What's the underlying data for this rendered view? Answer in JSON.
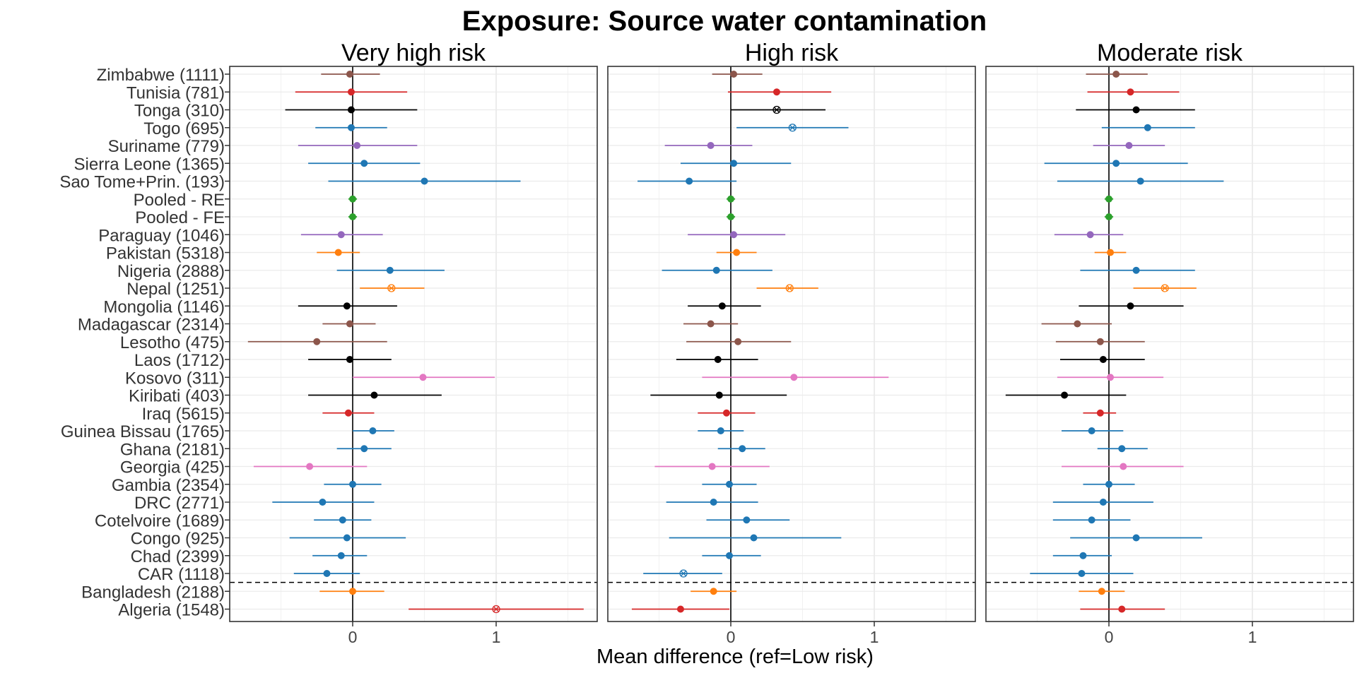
{
  "chart_data": {
    "type": "forest",
    "title": "Exposure: Source water contamination",
    "xlabel": "Mean difference (ref=Low risk)",
    "xlim": [
      -0.9,
      1.7
    ],
    "x_ticks": [
      "0",
      "1"
    ],
    "x_tick_values": [
      0,
      1
    ],
    "reference_line_x": 0,
    "panels": [
      "Very high risk",
      "High risk",
      "Moderate risk"
    ],
    "categories": [
      "Zimbabwe (1111)",
      "Tunisia (781)",
      "Tonga (310)",
      "Togo (695)",
      "Suriname (779)",
      "Sierra Leone (1365)",
      "Sao Tome+Prin. (193)",
      "Pooled - RE",
      "Pooled - FE",
      "Paraguay (1046)",
      "Pakistan (5318)",
      "Nigeria (2888)",
      "Nepal (1251)",
      "Mongolia (1146)",
      "Madagascar (2314)",
      "Lesotho (475)",
      "Laos (1712)",
      "Kosovo (311)",
      "Kiribati (403)",
      "Iraq (5615)",
      "Guinea Bissau (1765)",
      "Ghana (2181)",
      "Georgia (425)",
      "Gambia (2354)",
      "DRC (2771)",
      "Cotelvoire (1689)",
      "Congo (925)",
      "Chad (2399)",
      "CAR (1118)",
      "Bangladesh (2188)",
      "Algeria (1548)"
    ],
    "category_colors": [
      "#8c564b",
      "#d62728",
      "#000000",
      "#1f77b4",
      "#9467bd",
      "#1f77b4",
      "#1f77b4",
      "#2ca02c",
      "#2ca02c",
      "#9467bd",
      "#ff7f0e",
      "#1f77b4",
      "#ff7f0e",
      "#000000",
      "#8c564b",
      "#8c564b",
      "#000000",
      "#e377c2",
      "#000000",
      "#d62728",
      "#1f77b4",
      "#1f77b4",
      "#e377c2",
      "#1f77b4",
      "#1f77b4",
      "#1f77b4",
      "#1f77b4",
      "#1f77b4",
      "#1f77b4",
      "#ff7f0e",
      "#d62728"
    ],
    "separator_after_category": "CAR (1118)",
    "series": [
      {
        "panel": "Very high risk",
        "points": [
          {
            "est": -0.02,
            "lo": -0.22,
            "hi": 0.19,
            "marker": "dot"
          },
          {
            "est": -0.01,
            "lo": -0.4,
            "hi": 0.38,
            "marker": "dot"
          },
          {
            "est": -0.01,
            "lo": -0.47,
            "hi": 0.45,
            "marker": "dot"
          },
          {
            "est": -0.01,
            "lo": -0.26,
            "hi": 0.24,
            "marker": "dot"
          },
          {
            "est": 0.03,
            "lo": -0.38,
            "hi": 0.45,
            "marker": "dot"
          },
          {
            "est": 0.08,
            "lo": -0.31,
            "hi": 0.47,
            "marker": "dot"
          },
          {
            "est": 0.5,
            "lo": -0.17,
            "hi": 1.17,
            "marker": "dot"
          },
          {
            "est": 0.0,
            "lo": -0.03,
            "hi": 0.03,
            "marker": "dot"
          },
          {
            "est": 0.0,
            "lo": -0.03,
            "hi": 0.03,
            "marker": "dot"
          },
          {
            "est": -0.08,
            "lo": -0.36,
            "hi": 0.21,
            "marker": "dot"
          },
          {
            "est": -0.1,
            "lo": -0.25,
            "hi": 0.05,
            "marker": "dot"
          },
          {
            "est": 0.26,
            "lo": -0.11,
            "hi": 0.64,
            "marker": "dot"
          },
          {
            "est": 0.27,
            "lo": 0.05,
            "hi": 0.5,
            "marker": "cross"
          },
          {
            "est": -0.04,
            "lo": -0.38,
            "hi": 0.31,
            "marker": "dot"
          },
          {
            "est": -0.02,
            "lo": -0.21,
            "hi": 0.16,
            "marker": "dot"
          },
          {
            "est": -0.25,
            "lo": -0.73,
            "hi": 0.24,
            "marker": "dot"
          },
          {
            "est": -0.02,
            "lo": -0.31,
            "hi": 0.27,
            "marker": "dot"
          },
          {
            "est": 0.49,
            "lo": 0.0,
            "hi": 0.99,
            "marker": "dot"
          },
          {
            "est": 0.15,
            "lo": -0.31,
            "hi": 0.62,
            "marker": "dot"
          },
          {
            "est": -0.03,
            "lo": -0.21,
            "hi": 0.15,
            "marker": "dot"
          },
          {
            "est": 0.14,
            "lo": 0.0,
            "hi": 0.29,
            "marker": "dot"
          },
          {
            "est": 0.08,
            "lo": -0.11,
            "hi": 0.27,
            "marker": "dot"
          },
          {
            "est": -0.3,
            "lo": -0.69,
            "hi": 0.1,
            "marker": "dot"
          },
          {
            "est": 0.0,
            "lo": -0.2,
            "hi": 0.2,
            "marker": "dot"
          },
          {
            "est": -0.21,
            "lo": -0.56,
            "hi": 0.15,
            "marker": "dot"
          },
          {
            "est": -0.07,
            "lo": -0.27,
            "hi": 0.13,
            "marker": "dot"
          },
          {
            "est": -0.04,
            "lo": -0.44,
            "hi": 0.37,
            "marker": "dot"
          },
          {
            "est": -0.08,
            "lo": -0.28,
            "hi": 0.1,
            "marker": "dot"
          },
          {
            "est": -0.18,
            "lo": -0.41,
            "hi": 0.05,
            "marker": "dot"
          },
          {
            "est": 0.0,
            "lo": -0.23,
            "hi": 0.22,
            "marker": "dot"
          },
          {
            "est": 1.0,
            "lo": 0.39,
            "hi": 1.61,
            "marker": "cross"
          }
        ]
      },
      {
        "panel": "High risk",
        "points": [
          {
            "est": 0.02,
            "lo": -0.13,
            "hi": 0.22,
            "marker": "dot"
          },
          {
            "est": 0.32,
            "lo": -0.02,
            "hi": 0.7,
            "marker": "dot"
          },
          {
            "est": 0.32,
            "lo": 0.0,
            "hi": 0.66,
            "marker": "cross"
          },
          {
            "est": 0.43,
            "lo": 0.04,
            "hi": 0.82,
            "marker": "cross"
          },
          {
            "est": -0.14,
            "lo": -0.46,
            "hi": 0.15,
            "marker": "dot"
          },
          {
            "est": 0.02,
            "lo": -0.35,
            "hi": 0.42,
            "marker": "dot"
          },
          {
            "est": -0.29,
            "lo": -0.65,
            "hi": 0.04,
            "marker": "dot"
          },
          {
            "est": 0.0,
            "lo": -0.03,
            "hi": 0.03,
            "marker": "dot"
          },
          {
            "est": 0.0,
            "lo": -0.03,
            "hi": 0.03,
            "marker": "dot"
          },
          {
            "est": 0.02,
            "lo": -0.3,
            "hi": 0.38,
            "marker": "dot"
          },
          {
            "est": 0.04,
            "lo": -0.1,
            "hi": 0.18,
            "marker": "dot"
          },
          {
            "est": -0.1,
            "lo": -0.48,
            "hi": 0.29,
            "marker": "dot"
          },
          {
            "est": 0.41,
            "lo": 0.18,
            "hi": 0.61,
            "marker": "cross"
          },
          {
            "est": -0.06,
            "lo": -0.3,
            "hi": 0.21,
            "marker": "dot"
          },
          {
            "est": -0.14,
            "lo": -0.33,
            "hi": 0.05,
            "marker": "dot"
          },
          {
            "est": 0.05,
            "lo": -0.31,
            "hi": 0.42,
            "marker": "dot"
          },
          {
            "est": -0.09,
            "lo": -0.38,
            "hi": 0.19,
            "marker": "dot"
          },
          {
            "est": 0.44,
            "lo": -0.2,
            "hi": 1.1,
            "marker": "dot"
          },
          {
            "est": -0.08,
            "lo": -0.56,
            "hi": 0.39,
            "marker": "dot"
          },
          {
            "est": -0.03,
            "lo": -0.23,
            "hi": 0.17,
            "marker": "dot"
          },
          {
            "est": -0.07,
            "lo": -0.23,
            "hi": 0.09,
            "marker": "dot"
          },
          {
            "est": 0.08,
            "lo": -0.09,
            "hi": 0.24,
            "marker": "dot"
          },
          {
            "est": -0.13,
            "lo": -0.53,
            "hi": 0.27,
            "marker": "dot"
          },
          {
            "est": -0.01,
            "lo": -0.2,
            "hi": 0.18,
            "marker": "dot"
          },
          {
            "est": -0.12,
            "lo": -0.45,
            "hi": 0.19,
            "marker": "dot"
          },
          {
            "est": 0.11,
            "lo": -0.17,
            "hi": 0.41,
            "marker": "dot"
          },
          {
            "est": 0.16,
            "lo": -0.43,
            "hi": 0.77,
            "marker": "dot"
          },
          {
            "est": -0.01,
            "lo": -0.2,
            "hi": 0.21,
            "marker": "dot"
          },
          {
            "est": -0.33,
            "lo": -0.61,
            "hi": -0.06,
            "marker": "cross"
          },
          {
            "est": -0.12,
            "lo": -0.28,
            "hi": 0.04,
            "marker": "dot"
          },
          {
            "est": -0.35,
            "lo": -0.69,
            "hi": -0.01,
            "marker": "dot"
          }
        ]
      },
      {
        "panel": "Moderate risk",
        "points": [
          {
            "est": 0.05,
            "lo": -0.16,
            "hi": 0.27,
            "marker": "dot"
          },
          {
            "est": 0.15,
            "lo": -0.15,
            "hi": 0.49,
            "marker": "dot"
          },
          {
            "est": 0.19,
            "lo": -0.23,
            "hi": 0.6,
            "marker": "dot"
          },
          {
            "est": 0.27,
            "lo": -0.05,
            "hi": 0.6,
            "marker": "dot"
          },
          {
            "est": 0.14,
            "lo": -0.11,
            "hi": 0.39,
            "marker": "dot"
          },
          {
            "est": 0.05,
            "lo": -0.45,
            "hi": 0.55,
            "marker": "dot"
          },
          {
            "est": 0.22,
            "lo": -0.36,
            "hi": 0.8,
            "marker": "dot"
          },
          {
            "est": 0.0,
            "lo": -0.03,
            "hi": 0.03,
            "marker": "dot"
          },
          {
            "est": 0.0,
            "lo": -0.03,
            "hi": 0.03,
            "marker": "dot"
          },
          {
            "est": -0.13,
            "lo": -0.38,
            "hi": 0.1,
            "marker": "dot"
          },
          {
            "est": 0.01,
            "lo": -0.1,
            "hi": 0.12,
            "marker": "dot"
          },
          {
            "est": 0.19,
            "lo": -0.2,
            "hi": 0.6,
            "marker": "dot"
          },
          {
            "est": 0.39,
            "lo": 0.17,
            "hi": 0.61,
            "marker": "cross"
          },
          {
            "est": 0.15,
            "lo": -0.21,
            "hi": 0.52,
            "marker": "dot"
          },
          {
            "est": -0.22,
            "lo": -0.47,
            "hi": 0.02,
            "marker": "dot"
          },
          {
            "est": -0.06,
            "lo": -0.37,
            "hi": 0.25,
            "marker": "dot"
          },
          {
            "est": -0.04,
            "lo": -0.34,
            "hi": 0.25,
            "marker": "dot"
          },
          {
            "est": 0.01,
            "lo": -0.36,
            "hi": 0.38,
            "marker": "dot"
          },
          {
            "est": -0.31,
            "lo": -0.72,
            "hi": 0.12,
            "marker": "dot"
          },
          {
            "est": -0.06,
            "lo": -0.18,
            "hi": 0.05,
            "marker": "dot"
          },
          {
            "est": -0.12,
            "lo": -0.33,
            "hi": 0.1,
            "marker": "dot"
          },
          {
            "est": 0.09,
            "lo": -0.08,
            "hi": 0.27,
            "marker": "dot"
          },
          {
            "est": 0.1,
            "lo": -0.33,
            "hi": 0.52,
            "marker": "dot"
          },
          {
            "est": 0.0,
            "lo": -0.18,
            "hi": 0.18,
            "marker": "dot"
          },
          {
            "est": -0.04,
            "lo": -0.39,
            "hi": 0.31,
            "marker": "dot"
          },
          {
            "est": -0.12,
            "lo": -0.39,
            "hi": 0.15,
            "marker": "dot"
          },
          {
            "est": 0.19,
            "lo": -0.27,
            "hi": 0.65,
            "marker": "dot"
          },
          {
            "est": -0.18,
            "lo": -0.39,
            "hi": 0.02,
            "marker": "dot"
          },
          {
            "est": -0.19,
            "lo": -0.55,
            "hi": 0.17,
            "marker": "dot"
          },
          {
            "est": -0.05,
            "lo": -0.21,
            "hi": 0.11,
            "marker": "dot"
          },
          {
            "est": 0.09,
            "lo": -0.2,
            "hi": 0.39,
            "marker": "dot"
          }
        ]
      }
    ]
  }
}
